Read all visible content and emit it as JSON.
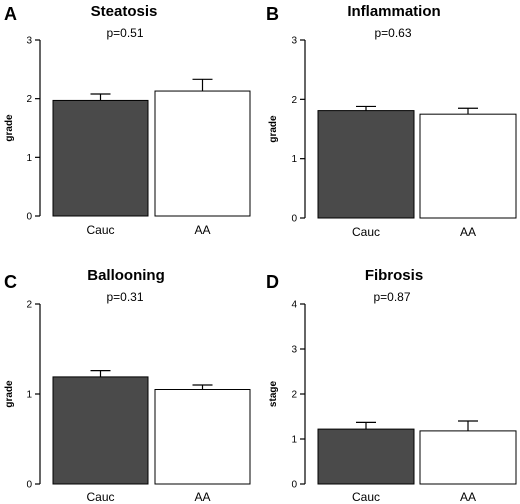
{
  "chart_data": [
    {
      "type": "bar",
      "panel": "A",
      "title": "Steatosis",
      "annotation": "p=0.51",
      "ylabel": "grade",
      "ylim": [
        0,
        3
      ],
      "yticks": [
        "0",
        "1",
        "2",
        "3"
      ],
      "categories": [
        "Cauc",
        "AA"
      ],
      "values": [
        1.97,
        2.13
      ],
      "errors": [
        0.11,
        0.2
      ],
      "colors": [
        "#4a4a4a",
        "#ffffff"
      ]
    },
    {
      "type": "bar",
      "panel": "B",
      "title": "Inflammation",
      "annotation": "p=0.63",
      "ylabel": "grade",
      "ylim": [
        0,
        3
      ],
      "yticks": [
        "0",
        "1",
        "2",
        "3"
      ],
      "categories": [
        "Cauc",
        "AA"
      ],
      "values": [
        1.81,
        1.75
      ],
      "errors": [
        0.07,
        0.1
      ],
      "colors": [
        "#4a4a4a",
        "#ffffff"
      ]
    },
    {
      "type": "bar",
      "panel": "C",
      "title": "Ballooning",
      "annotation": "p=0.31",
      "ylabel": "grade",
      "ylim": [
        0,
        2
      ],
      "yticks": [
        "0",
        "1",
        "2"
      ],
      "categories": [
        "Cauc",
        "AA"
      ],
      "values": [
        1.19,
        1.05
      ],
      "errors": [
        0.07,
        0.05
      ],
      "colors": [
        "#4a4a4a",
        "#ffffff"
      ]
    },
    {
      "type": "bar",
      "panel": "D",
      "title": "Fibrosis",
      "annotation": "p=0.87",
      "ylabel": "stage",
      "ylim": [
        0,
        4
      ],
      "yticks": [
        "0",
        "1",
        "2",
        "3",
        "4"
      ],
      "categories": [
        "Cauc",
        "AA"
      ],
      "values": [
        1.22,
        1.18
      ],
      "errors": [
        0.15,
        0.22
      ],
      "colors": [
        "#4a4a4a",
        "#ffffff"
      ]
    }
  ]
}
